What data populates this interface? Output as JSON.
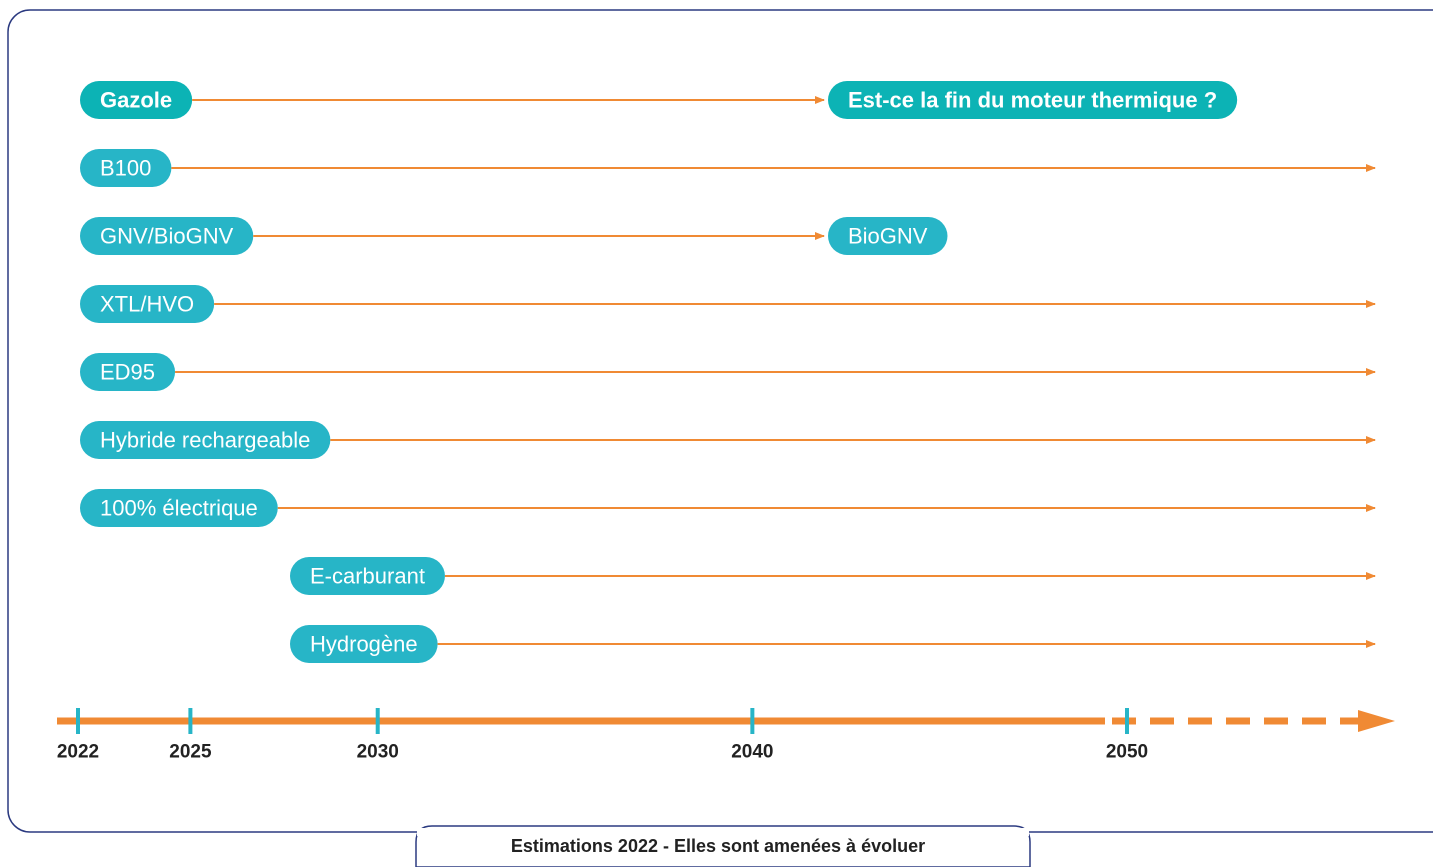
{
  "rows": [
    {
      "labels": [
        "Gazole",
        "Est-ce la fin du moteur thermique ?"
      ]
    },
    {
      "labels": [
        "B100"
      ]
    },
    {
      "labels": [
        "GNV/BioGNV",
        "BioGNV"
      ]
    },
    {
      "labels": [
        "XTL/HVO"
      ]
    },
    {
      "labels": [
        "ED95"
      ]
    },
    {
      "labels": [
        "Hybride rechargeable"
      ]
    },
    {
      "labels": [
        "100% électrique"
      ]
    },
    {
      "labels": [
        "E-carburant"
      ]
    },
    {
      "labels": [
        "Hydrogène"
      ]
    }
  ],
  "timeline": {
    "years": [
      "2022",
      "2025",
      "2030",
      "2040",
      "2050"
    ]
  },
  "footer": {
    "note": "Estimations 2022 - Elles sont amenées à évoluer"
  }
}
